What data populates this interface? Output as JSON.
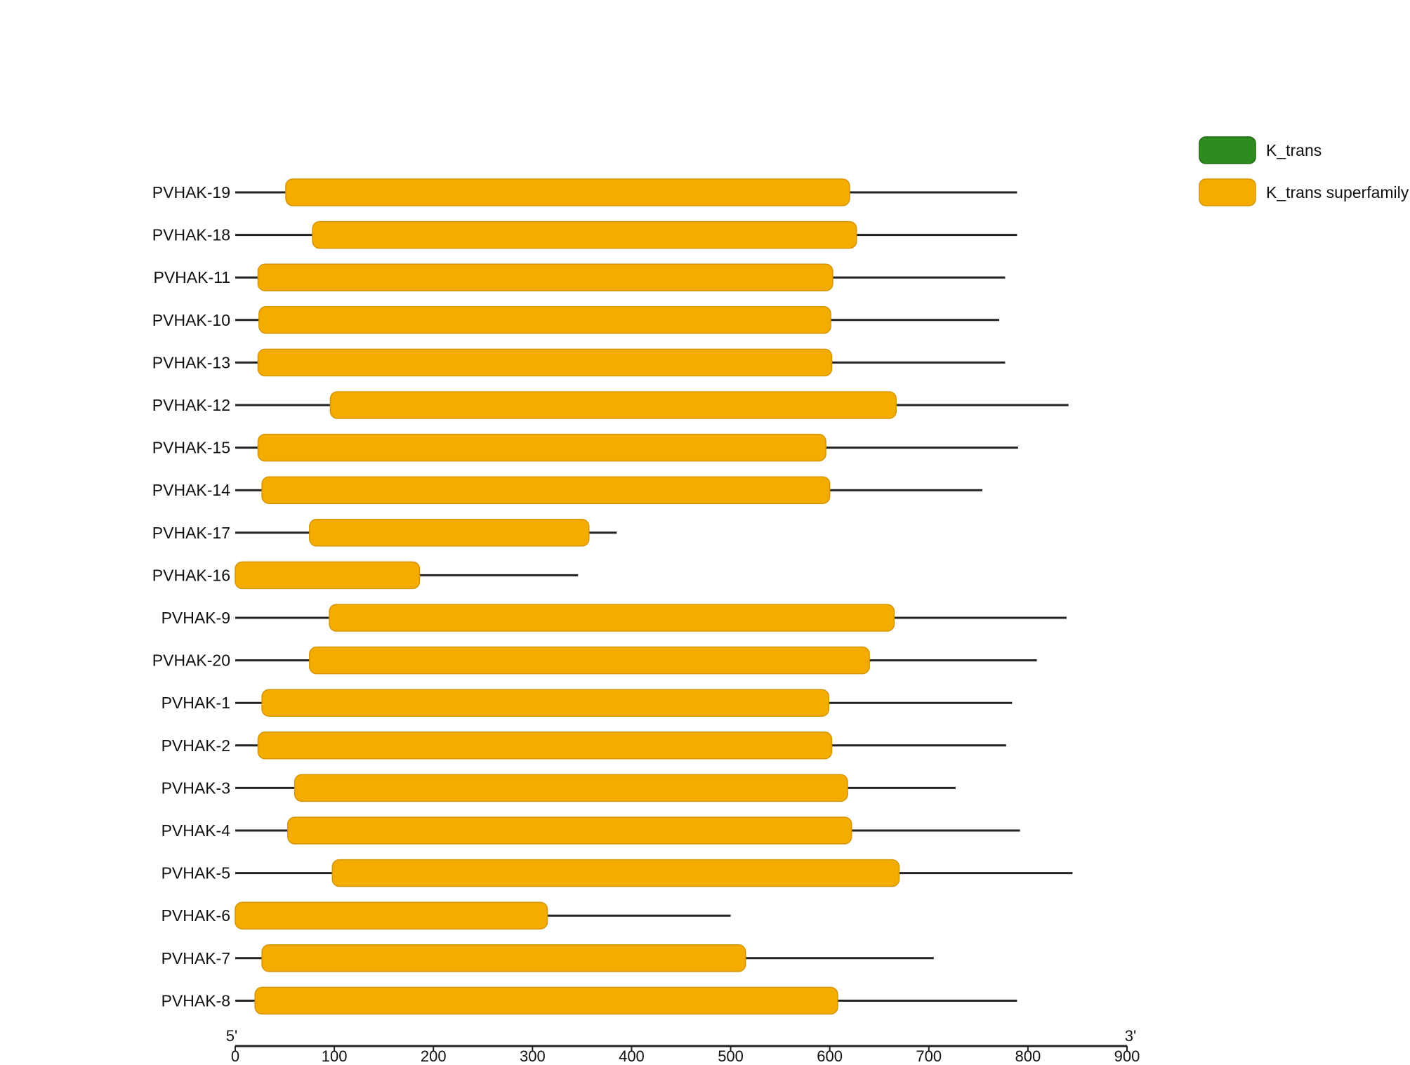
{
  "chart_data": {
    "type": "gene-domain-structure",
    "xlim": [
      0,
      900
    ],
    "ticks": [
      0,
      100,
      200,
      300,
      400,
      500,
      600,
      700,
      800,
      900
    ],
    "axis_start_label": "5'",
    "axis_end_label": "3'",
    "legend": [
      {
        "name": "K_trans",
        "color": "#2e8b1e"
      },
      {
        "name": "K_trans superfamily",
        "color": "#f5ac00"
      }
    ],
    "genes": [
      {
        "name": "PVHAK-19",
        "length": 789,
        "domain": {
          "type": "K_trans superfamily",
          "start": 51,
          "end": 620
        }
      },
      {
        "name": "PVHAK-18",
        "length": 789,
        "domain": {
          "type": "K_trans superfamily",
          "start": 78,
          "end": 627
        }
      },
      {
        "name": "PVHAK-11",
        "length": 777,
        "domain": {
          "type": "K_trans superfamily",
          "start": 23,
          "end": 603
        }
      },
      {
        "name": "PVHAK-10",
        "length": 771,
        "domain": {
          "type": "K_trans superfamily",
          "start": 24,
          "end": 601
        }
      },
      {
        "name": "PVHAK-13",
        "length": 777,
        "domain": {
          "type": "K_trans superfamily",
          "start": 23,
          "end": 602
        }
      },
      {
        "name": "PVHAK-12",
        "length": 841,
        "domain": {
          "type": "K_trans superfamily",
          "start": 96,
          "end": 667
        }
      },
      {
        "name": "PVHAK-15",
        "length": 790,
        "domain": {
          "type": "K_trans superfamily",
          "start": 23,
          "end": 596
        }
      },
      {
        "name": "PVHAK-14",
        "length": 754,
        "domain": {
          "type": "K_trans superfamily",
          "start": 27,
          "end": 600
        }
      },
      {
        "name": "PVHAK-17",
        "length": 385,
        "domain": {
          "type": "K_trans superfamily",
          "start": 75,
          "end": 357
        }
      },
      {
        "name": "PVHAK-16",
        "length": 346,
        "domain": {
          "type": "K_trans superfamily",
          "start": 0,
          "end": 186
        }
      },
      {
        "name": "PVHAK-9",
        "length": 839,
        "domain": {
          "type": "K_trans superfamily",
          "start": 95,
          "end": 665
        }
      },
      {
        "name": "PVHAK-20",
        "length": 809,
        "domain": {
          "type": "K_trans superfamily",
          "start": 75,
          "end": 640
        }
      },
      {
        "name": "PVHAK-1",
        "length": 784,
        "domain": {
          "type": "K_trans superfamily",
          "start": 27,
          "end": 599
        }
      },
      {
        "name": "PVHAK-2",
        "length": 778,
        "domain": {
          "type": "K_trans superfamily",
          "start": 23,
          "end": 602
        }
      },
      {
        "name": "PVHAK-3",
        "length": 727,
        "domain": {
          "type": "K_trans superfamily",
          "start": 60,
          "end": 618
        }
      },
      {
        "name": "PVHAK-4",
        "length": 792,
        "domain": {
          "type": "K_trans superfamily",
          "start": 53,
          "end": 622
        }
      },
      {
        "name": "PVHAK-5",
        "length": 845,
        "domain": {
          "type": "K_trans superfamily",
          "start": 98,
          "end": 670
        }
      },
      {
        "name": "PVHAK-6",
        "length": 500,
        "domain": {
          "type": "K_trans superfamily",
          "start": 0,
          "end": 315
        }
      },
      {
        "name": "PVHAK-7",
        "length": 705,
        "domain": {
          "type": "K_trans superfamily",
          "start": 27,
          "end": 515
        }
      },
      {
        "name": "PVHAK-8",
        "length": 789,
        "domain": {
          "type": "K_trans superfamily",
          "start": 20,
          "end": 608
        }
      }
    ]
  }
}
